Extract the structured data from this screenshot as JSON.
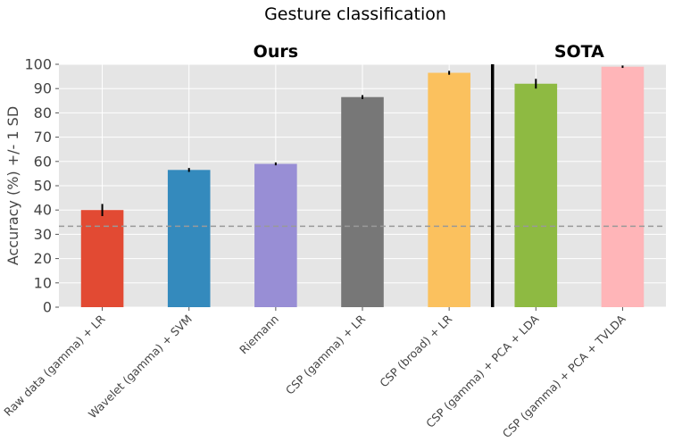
{
  "chart_data": {
    "type": "bar",
    "title": "Gesture classification",
    "ylabel": "Accuracy (%) +/- 1 SD",
    "xlabel": "",
    "ylim": [
      0,
      100
    ],
    "yticks": [
      0,
      10,
      20,
      30,
      40,
      50,
      60,
      70,
      80,
      90,
      100
    ],
    "grid": true,
    "chance_level": 33.3,
    "groups": [
      {
        "label": "Ours",
        "start": 0,
        "end": 4
      },
      {
        "label": "SOTA",
        "start": 5,
        "end": 6
      }
    ],
    "categories": [
      "Raw data (gamma) + LR",
      "Wavelet (gamma) + SVM",
      "Riemann",
      "CSP (gamma) + LR",
      "CSP (broad) + LR",
      "CSP (gamma) + PCA + LDA",
      "CSP (gamma) + PCA + TVLDA"
    ],
    "values": [
      40,
      56.5,
      59,
      86.5,
      96.5,
      92,
      99
    ],
    "errors": [
      2.5,
      0.8,
      0.6,
      0.8,
      0.8,
      2.0,
      0.5
    ],
    "colors": [
      "#E24A33",
      "#348ABD",
      "#988ED5",
      "#777777",
      "#FBC15E",
      "#8EBA42",
      "#FFB5B8"
    ]
  }
}
